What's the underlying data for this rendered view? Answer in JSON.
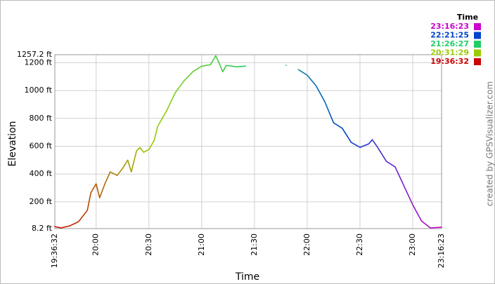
{
  "chart_data": {
    "type": "line",
    "y_label": "Elevation",
    "x_label": "Time",
    "credit": "created by GPSVisualizer.com",
    "x": [
      "19:36:32",
      "19:40",
      "19:45",
      "19:50",
      "19:55",
      "19:57",
      "20:00",
      "20:02",
      "20:05",
      "20:08",
      "20:12",
      "20:15",
      "20:18",
      "20:20",
      "20:23",
      "20:25",
      "20:27",
      "20:30",
      "20:33",
      "20:35",
      "20:40",
      "20:45",
      "20:50",
      "20:55",
      "21:00",
      "21:05",
      "21:08",
      "21:10",
      "21:12",
      "21:14",
      "21:20",
      "21:25",
      "21:30",
      "21:48",
      "21:50",
      "21:55",
      "22:00",
      "22:05",
      "22:10",
      "22:15",
      "22:20",
      "22:25",
      "22:30",
      "22:35",
      "22:37",
      "22:40",
      "22:45",
      "22:50",
      "22:55",
      "23:00",
      "23:05",
      "23:10",
      "23:16:23"
    ],
    "values": [
      23,
      13,
      28,
      58,
      139,
      265,
      330,
      230,
      330,
      415,
      390,
      440,
      500,
      415,
      566,
      590,
      556,
      577,
      642,
      743,
      853,
      984,
      1070,
      1135,
      1175,
      1185,
      1250,
      1195,
      1135,
      1180,
      1170,
      1175,
      null,
      1180,
      null,
      1150,
      1110,
      1035,
      920,
      768,
      728,
      627,
      592,
      617,
      647,
      592,
      491,
      451,
      315,
      179,
      63,
      13,
      18
    ],
    "ylim": [
      8.2,
      1257.2
    ],
    "yticks": [
      {
        "value": 8.2,
        "label": "8.2 ft"
      },
      {
        "value": 200,
        "label": "200 ft"
      },
      {
        "value": 400,
        "label": "400 ft"
      },
      {
        "value": 600,
        "label": "600 ft"
      },
      {
        "value": 800,
        "label": "800 ft"
      },
      {
        "value": 1000,
        "label": "1000 ft"
      },
      {
        "value": 1200,
        "label": "1200 ft"
      },
      {
        "value": 1257.2,
        "label": "1257.2 ft"
      }
    ],
    "xlim": [
      "19:36:32",
      "23:16:23"
    ],
    "xticks": [
      "19:36:32",
      "20:00",
      "20:30",
      "21:00",
      "21:30",
      "22:00",
      "22:30",
      "23:00",
      "23:16:23"
    ],
    "grid": true,
    "legend": {
      "title": "Time",
      "position": "top-right",
      "entries": [
        {
          "label": "23:16:23",
          "color": "#cc00cc"
        },
        {
          "label": "22:21:25",
          "color": "#0044cc"
        },
        {
          "label": "21:26:27",
          "color": "#22cc66"
        },
        {
          "label": "20:31:29",
          "color": "#99cc00"
        },
        {
          "label": "19:36:32",
          "color": "#cc0000"
        }
      ]
    }
  }
}
